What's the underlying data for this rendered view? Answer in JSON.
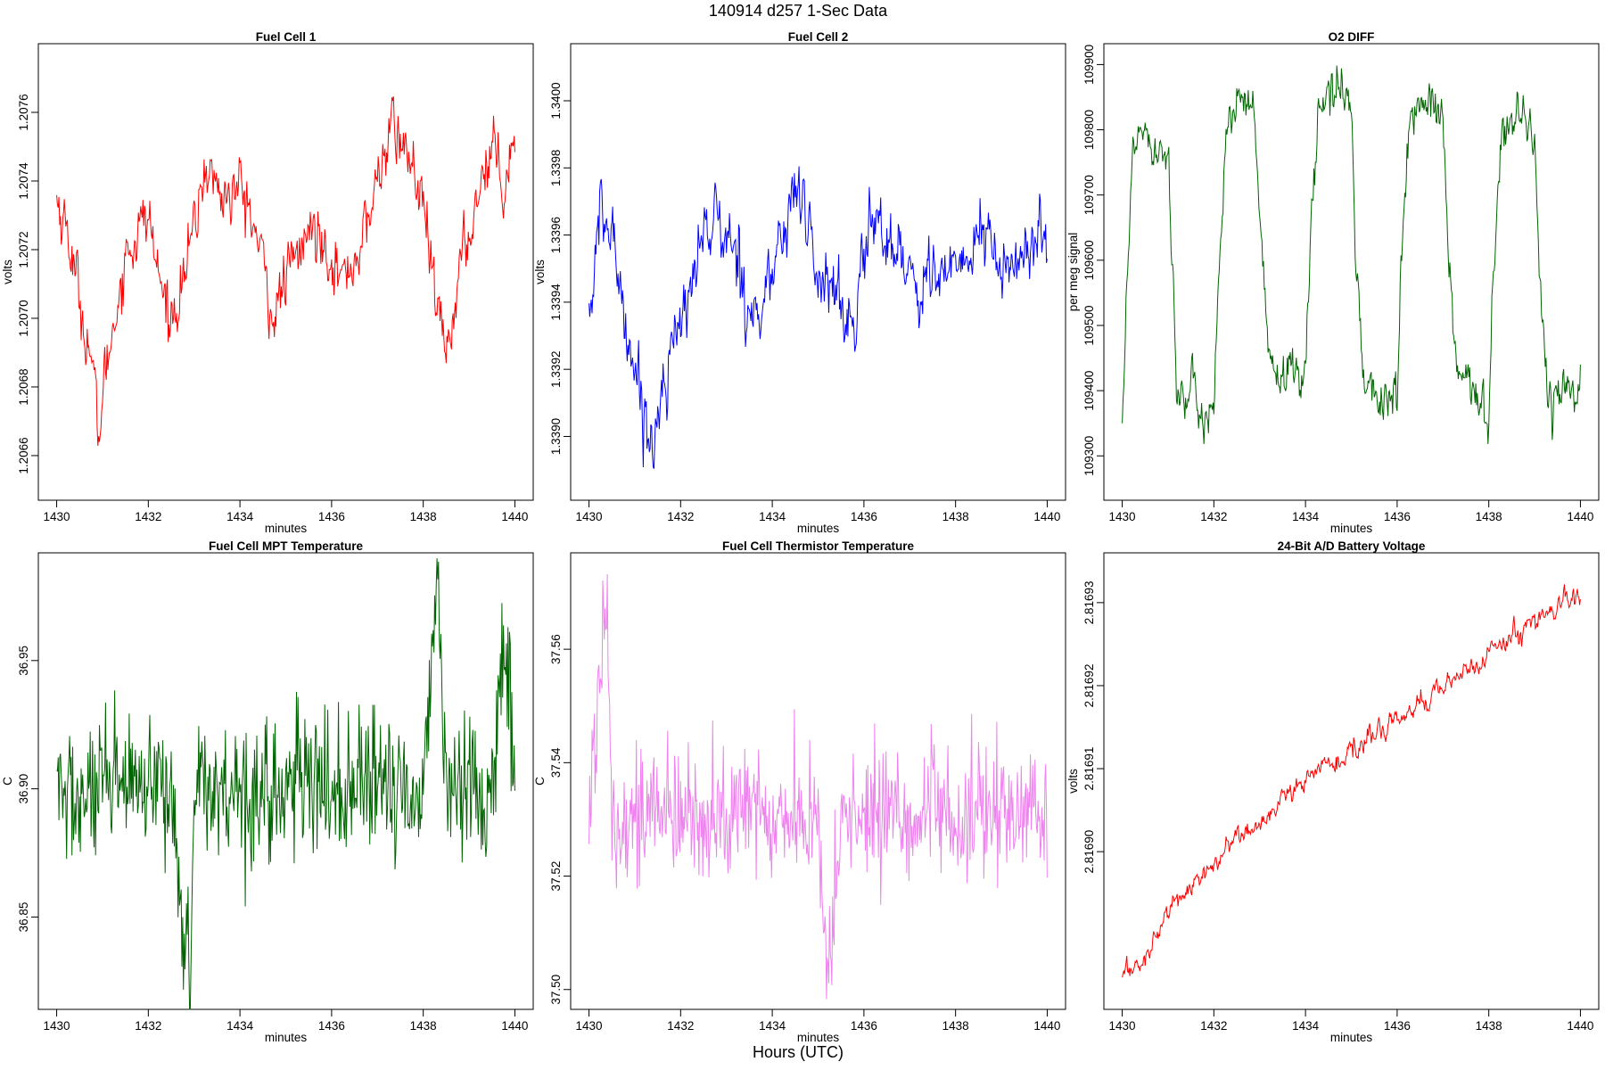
{
  "figure": {
    "title": "140914   d257   1-Sec Data",
    "outer_xlabel": "Hours (UTC)"
  },
  "chart_data": [
    {
      "type": "line",
      "title": "Fuel Cell 1",
      "xlabel": "minutes",
      "ylabel": "volts",
      "color": "#ff0000",
      "xlim": [
        1429.6,
        1440.4
      ],
      "ylim": [
        1.20647,
        1.2078
      ],
      "xticks": [
        1430,
        1432,
        1434,
        1436,
        1438,
        1440
      ],
      "xtick_labels": [
        "1430",
        "1432",
        "1434",
        "1436",
        "1438",
        "1440"
      ],
      "yticks": [
        1.2066,
        1.2068,
        1.207,
        1.2072,
        1.2074,
        1.2076
      ],
      "ytick_labels": [
        "1.2066",
        "1.2068",
        "1.2070",
        "1.2072",
        "1.2074",
        "1.2076"
      ],
      "series": [
        {
          "x": [
            1430,
            1430.25,
            1430.5,
            1430.75,
            1430.9,
            1431,
            1431.25,
            1431.5,
            1431.75,
            1432,
            1432.25,
            1432.5,
            1432.75,
            1433,
            1433.25,
            1433.5,
            1433.75,
            1434,
            1434.25,
            1434.5,
            1434.75,
            1435,
            1435.25,
            1435.5,
            1435.75,
            1436,
            1436.25,
            1436.5,
            1436.75,
            1437,
            1437.25,
            1437.5,
            1437.75,
            1438,
            1438.25,
            1438.5,
            1438.75,
            1439,
            1439.25,
            1439.5,
            1439.75,
            1440
          ],
          "y": [
            1.20735,
            1.20725,
            1.20705,
            1.2069,
            1.20665,
            1.20678,
            1.207,
            1.20718,
            1.20725,
            1.2073,
            1.2071,
            1.207,
            1.20712,
            1.20725,
            1.20745,
            1.20738,
            1.20735,
            1.20738,
            1.2073,
            1.20715,
            1.207,
            1.20712,
            1.20718,
            1.20725,
            1.20725,
            1.2072,
            1.2071,
            1.20718,
            1.20725,
            1.2074,
            1.20755,
            1.20752,
            1.20745,
            1.20732,
            1.20705,
            1.2069,
            1.2071,
            1.20725,
            1.2074,
            1.20752,
            1.2074,
            1.20755
          ]
        }
      ]
    },
    {
      "type": "line",
      "title": "Fuel Cell 2",
      "xlabel": "minutes",
      "ylabel": "volts",
      "color": "#0000ff",
      "xlim": [
        1429.6,
        1440.4
      ],
      "ylim": [
        1.33881,
        1.34017
      ],
      "xticks": [
        1430,
        1432,
        1434,
        1436,
        1438,
        1440
      ],
      "xtick_labels": [
        "1430",
        "1432",
        "1434",
        "1436",
        "1438",
        "1440"
      ],
      "yticks": [
        1.339,
        1.3392,
        1.3394,
        1.3396,
        1.3398,
        1.34
      ],
      "ytick_labels": [
        "1.3390",
        "1.3392",
        "1.3394",
        "1.3396",
        "1.3398",
        "1.3400"
      ],
      "series": [
        {
          "x": [
            1430,
            1430.25,
            1430.5,
            1430.75,
            1431,
            1431.25,
            1431.4,
            1431.5,
            1431.75,
            1432,
            1432.25,
            1432.5,
            1432.75,
            1433,
            1433.25,
            1433.5,
            1433.75,
            1434,
            1434.25,
            1434.5,
            1434.75,
            1435,
            1435.25,
            1435.5,
            1435.75,
            1436,
            1436.25,
            1436.5,
            1436.75,
            1437,
            1437.25,
            1437.5,
            1437.75,
            1438,
            1438.25,
            1438.5,
            1438.75,
            1439,
            1439.25,
            1439.5,
            1439.75,
            1440
          ],
          "y": [
            1.33935,
            1.33965,
            1.3396,
            1.3394,
            1.3392,
            1.33905,
            1.33895,
            1.3391,
            1.33925,
            1.3393,
            1.3395,
            1.3396,
            1.33965,
            1.33958,
            1.33955,
            1.3394,
            1.33935,
            1.3395,
            1.3396,
            1.33975,
            1.33965,
            1.33945,
            1.3395,
            1.33935,
            1.3393,
            1.33955,
            1.33965,
            1.3396,
            1.33955,
            1.3395,
            1.33945,
            1.3395,
            1.33948,
            1.33945,
            1.33955,
            1.3396,
            1.33958,
            1.3395,
            1.33948,
            1.33955,
            1.3396,
            1.33955
          ]
        }
      ]
    },
    {
      "type": "line",
      "title": "O2 DIFF",
      "xlabel": "minutes",
      "ylabel": "per meg signal",
      "color": "#006400",
      "xlim": [
        1429.6,
        1440.4
      ],
      "ylim": [
        109232,
        109932
      ],
      "xticks": [
        1430,
        1432,
        1434,
        1436,
        1438,
        1440
      ],
      "xtick_labels": [
        "1430",
        "1432",
        "1434",
        "1436",
        "1438",
        "1440"
      ],
      "yticks": [
        109300,
        109400,
        109500,
        109600,
        109700,
        109800,
        109900
      ],
      "ytick_labels": [
        "109300",
        "109400",
        "109500",
        "109600",
        "109700",
        "109800",
        "109900"
      ],
      "series": [
        {
          "x": [
            1430,
            1430.1,
            1430.25,
            1430.4,
            1430.75,
            1431,
            1431.1,
            1431.2,
            1431.6,
            1432,
            1432.1,
            1432.3,
            1432.6,
            1432.9,
            1433,
            1433.2,
            1433.6,
            1434,
            1434.1,
            1434.3,
            1434.8,
            1435,
            1435.1,
            1435.3,
            1435.7,
            1436,
            1436.1,
            1436.3,
            1436.7,
            1437,
            1437.1,
            1437.3,
            1437.6,
            1438,
            1438.1,
            1438.3,
            1438.7,
            1439,
            1439.1,
            1439.3,
            1439.7,
            1440
          ],
          "y": [
            109370,
            109560,
            109780,
            109810,
            109780,
            109770,
            109600,
            109390,
            109380,
            109370,
            109580,
            109820,
            109830,
            109820,
            109650,
            109440,
            109420,
            109440,
            109620,
            109840,
            109860,
            109830,
            109620,
            109400,
            109390,
            109380,
            109610,
            109840,
            109830,
            109820,
            109630,
            109420,
            109400,
            109370,
            109590,
            109810,
            109820,
            109800,
            109580,
            109380,
            109410,
            109420
          ]
        }
      ]
    },
    {
      "type": "line",
      "title": "Fuel Cell MPT Temperature",
      "xlabel": "minutes",
      "ylabel": "C",
      "color": "#006400",
      "xlim": [
        1429.6,
        1440.4
      ],
      "ylim": [
        36.814,
        36.992
      ],
      "xticks": [
        1430,
        1432,
        1434,
        1436,
        1438,
        1440
      ],
      "xtick_labels": [
        "1430",
        "1432",
        "1434",
        "1436",
        "1438",
        "1440"
      ],
      "yticks": [
        36.85,
        36.9,
        36.95
      ],
      "ytick_labels": [
        "36.85",
        "36.90",
        "36.95"
      ],
      "series": [
        {
          "x": [
            1430,
            1430.5,
            1431,
            1431.5,
            1432,
            1432.5,
            1432.9,
            1433,
            1433.5,
            1434,
            1434.5,
            1435,
            1435.5,
            1436,
            1436.5,
            1437,
            1437.5,
            1438,
            1438.3,
            1438.5,
            1439,
            1439.5,
            1439.8,
            1440
          ],
          "y": [
            36.9,
            36.895,
            36.898,
            36.902,
            36.896,
            36.9,
            36.82,
            36.905,
            36.899,
            36.901,
            36.897,
            36.9,
            36.903,
            36.898,
            36.902,
            36.899,
            36.901,
            36.897,
            36.988,
            36.899,
            36.902,
            36.898,
            36.962,
            36.9
          ]
        }
      ]
    },
    {
      "type": "line",
      "title": "Fuel Cell Thermistor Temperature",
      "xlabel": "minutes",
      "ylabel": "C",
      "color": "#ee82ee",
      "xlim": [
        1429.6,
        1440.4
      ],
      "ylim": [
        37.4965,
        37.577
      ],
      "xticks": [
        1430,
        1432,
        1434,
        1436,
        1438,
        1440
      ],
      "xtick_labels": [
        "1430",
        "1432",
        "1434",
        "1436",
        "1438",
        "1440"
      ],
      "yticks": [
        37.5,
        37.52,
        37.54,
        37.56
      ],
      "ytick_labels": [
        "37.50",
        "37.52",
        "37.54",
        "37.56"
      ],
      "series": [
        {
          "x": [
            1430,
            1430.4,
            1430.5,
            1431,
            1431.5,
            1432,
            1432.5,
            1433,
            1433.5,
            1434,
            1434.5,
            1435,
            1435.2,
            1435.5,
            1436,
            1436.5,
            1437,
            1437.5,
            1438,
            1438.5,
            1439,
            1439.5,
            1440
          ],
          "y": [
            37.53,
            37.573,
            37.531,
            37.53,
            37.532,
            37.529,
            37.531,
            37.53,
            37.532,
            37.53,
            37.531,
            37.529,
            37.499,
            37.531,
            37.53,
            37.532,
            37.53,
            37.531,
            37.529,
            37.531,
            37.53,
            37.532,
            37.53
          ]
        }
      ]
    },
    {
      "type": "line",
      "title": "24-Bit A/D Battery Voltage",
      "xlabel": "minutes",
      "ylabel": "volts",
      "color": "#ff0000",
      "xlim": [
        1429.6,
        1440.4
      ],
      "ylim": [
        2.816881,
        2.816936
      ],
      "xticks": [
        1430,
        1432,
        1434,
        1436,
        1438,
        1440
      ],
      "xtick_labels": [
        "1430",
        "1432",
        "1434",
        "1436",
        "1438",
        "1440"
      ],
      "yticks": [
        2.8169,
        2.81691,
        2.81692,
        2.81693
      ],
      "ytick_labels": [
        "2.81690",
        "2.81691",
        "2.81692",
        "2.81693"
      ],
      "series": [
        {
          "x": [
            1430,
            1430.5,
            1431,
            1431.5,
            1432,
            1432.5,
            1433,
            1433.5,
            1434,
            1434.5,
            1435,
            1435.5,
            1436,
            1436.5,
            1437,
            1437.5,
            1438,
            1438.5,
            1439,
            1439.5,
            1440
          ],
          "y": [
            2.816885,
            2.816887,
            2.816893,
            2.816896,
            2.816898,
            2.816902,
            2.816903,
            2.816906,
            2.816909,
            2.81691,
            2.816912,
            2.816914,
            2.816916,
            2.816918,
            2.81692,
            2.816922,
            2.816924,
            2.816926,
            2.816928,
            2.816929,
            2.816931
          ]
        }
      ]
    }
  ]
}
